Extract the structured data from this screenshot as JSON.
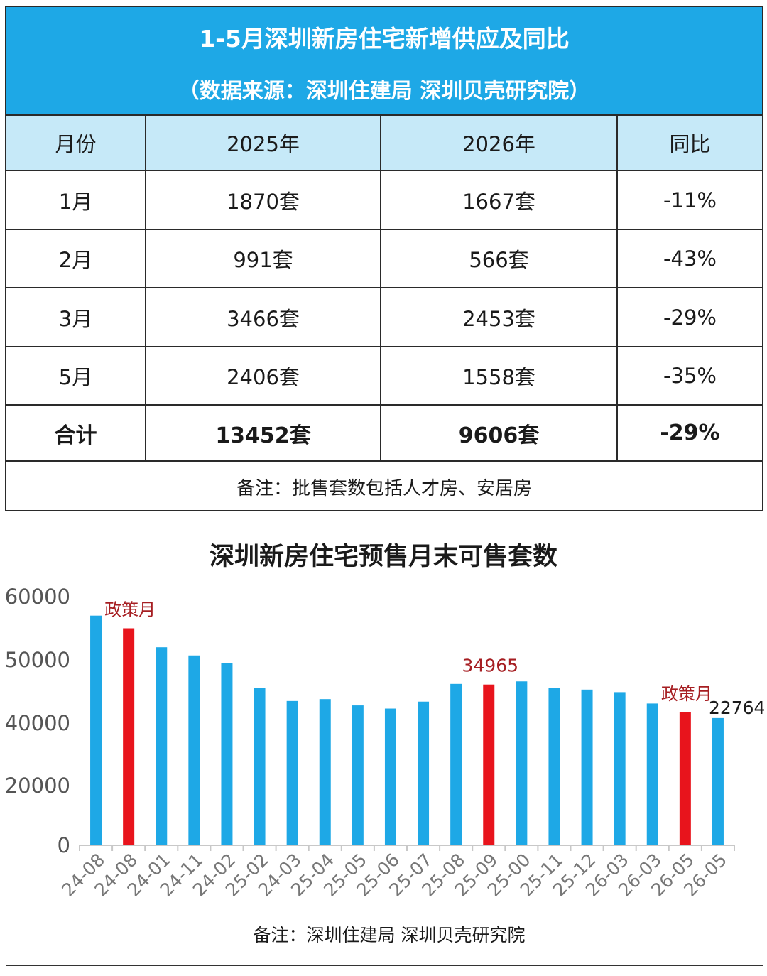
{
  "table": {
    "title": "1-5月深圳新房住宅新增供应及同比",
    "subtitle": "（数据来源：深圳住建局  深圳贝壳研究院）",
    "headers": [
      "月份",
      "2025年",
      "2026年",
      "同比"
    ],
    "rows": [
      [
        "1月",
        "1870套",
        "1667套",
        "-11%"
      ],
      [
        "2月",
        "991套",
        "566套",
        "-43%"
      ],
      [
        "3月",
        "3466套",
        "2453套",
        "-29%"
      ],
      [
        "5月",
        "2406套",
        "1558套",
        "-35%"
      ]
    ],
    "total": [
      "合计",
      "13452套",
      "9606套",
      "-29%"
    ],
    "note": "备注：批售套数包括人才房、安居房"
  },
  "chart_data": {
    "type": "bar",
    "title": "深圳新房住宅预售月末可售套数",
    "categories": [
      "24-08",
      "24-08",
      "24-01",
      "24-11",
      "24-02",
      "25-02",
      "24-03",
      "25-04",
      "25-05",
      "25-06",
      "25-07",
      "25-08",
      "25-09",
      "25-00",
      "25-11",
      "25-12",
      "26-03",
      "26-03",
      "26-05",
      "26-05"
    ],
    "y_tick_labels": [
      "0",
      "20000",
      "40000",
      "50000",
      "60000"
    ],
    "y_tick_values": [
      0,
      20000,
      40000,
      50000,
      60000
    ],
    "values": [
      57000,
      55000,
      52000,
      50700,
      49500,
      45600,
      43500,
      43800,
      42800,
      42300,
      43400,
      46200,
      46100,
      46600,
      45600,
      45300,
      44900,
      43100,
      41700,
      40800
    ],
    "highlight_indices": [
      1,
      12,
      18
    ],
    "colors": {
      "bar": "#1ea8e6",
      "highlight": "#e8141c",
      "annotation": "#a61e22"
    },
    "annotations": [
      {
        "bar_index": 1,
        "text": "政策月"
      },
      {
        "bar_index": 12,
        "text": "34965"
      },
      {
        "bar_index": 18,
        "text": "政策月"
      },
      {
        "bar_index": 19,
        "text": "22764"
      }
    ],
    "note": "备注：深圳住建局  深圳贝壳研究院"
  }
}
